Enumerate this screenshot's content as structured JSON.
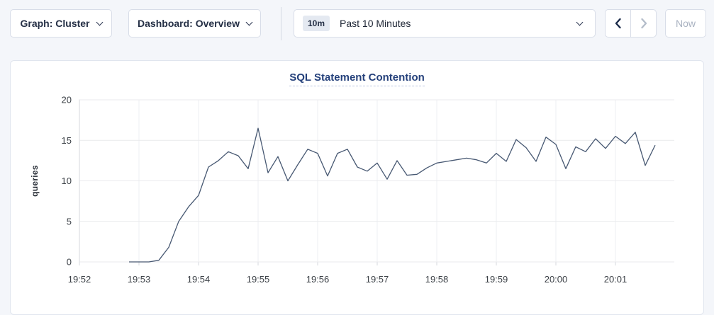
{
  "toolbar": {
    "graph_dropdown_label": "Graph: Cluster",
    "dashboard_dropdown_label": "Dashboard: Overview",
    "time_picker": {
      "badge": "10m",
      "label": "Past 10 Minutes"
    },
    "now_button_label": "Now"
  },
  "icons": {
    "chevron-down-icon": "⌄ (CSS rotated-border chevron)",
    "chevron-left-icon": "‹ (SVG stroke chevron, enabled, dark)",
    "chevron-right-icon": "› (SVG stroke chevron, disabled, gray)"
  },
  "colors": {
    "page_background": "#f4f6fa",
    "panel_background": "#ffffff",
    "control_border": "#d8dde8",
    "control_text": "#242f45",
    "disabled_text": "#a9b2c1",
    "title_text": "#25417b",
    "title_underline": "#b9c5df"
  },
  "chart_data": {
    "type": "line",
    "title": "SQL Statement Contention",
    "ylabel": "queries",
    "xlabel": "",
    "ylim": [
      0,
      20
    ],
    "yticks": [
      0,
      5,
      10,
      15,
      20
    ],
    "xticks": [
      "19:52",
      "19:53",
      "19:54",
      "19:55",
      "19:56",
      "19:57",
      "19:58",
      "19:59",
      "20:00",
      "20:01"
    ],
    "grid": true,
    "legend": "none",
    "colors": {
      "line": "#475872",
      "grid_h": "#e9eaec",
      "grid_v": "#edeff3",
      "axis": "#d4d7dd"
    },
    "series": [
      {
        "name": "queries",
        "start_time": "19:52:50",
        "interval_seconds": 10,
        "values": [
          0,
          0,
          0,
          0.2,
          1.8,
          5,
          6.8,
          8.2,
          11.7,
          12.5,
          13.6,
          13.1,
          11.5,
          16.5,
          11,
          13,
          10,
          12,
          13.9,
          13.4,
          10.6,
          13.4,
          13.9,
          11.7,
          11.2,
          12.2,
          10.2,
          12.5,
          10.7,
          10.8,
          11.6,
          12.2,
          12.4,
          12.6,
          12.8,
          12.6,
          12.2,
          13.4,
          12.4,
          15.1,
          14.1,
          12.4,
          15.4,
          14.5,
          11.5,
          14.2,
          13.6,
          15.2,
          14,
          15.5,
          14.6,
          16,
          11.9,
          14.4
        ]
      }
    ]
  }
}
